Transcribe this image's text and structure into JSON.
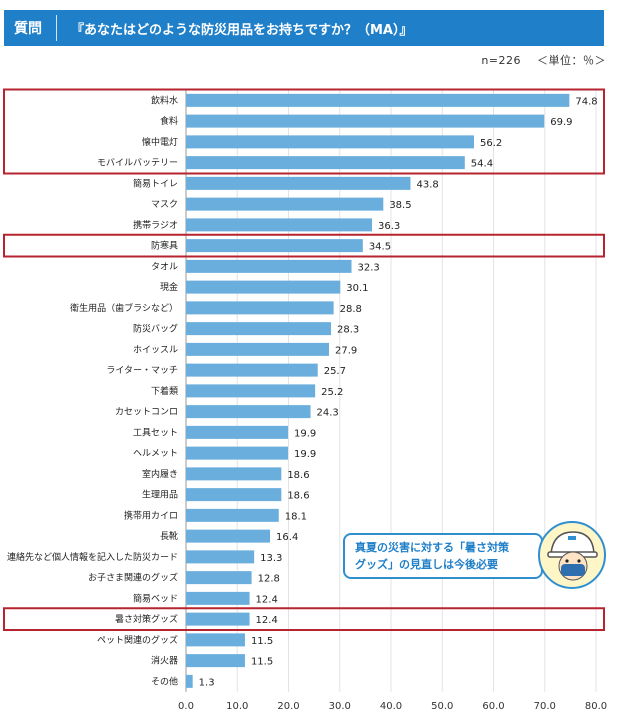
{
  "header": {
    "label": "質問",
    "question": "『あなたはどのような防災用品をお持ちですか？（MA）』"
  },
  "meta": {
    "n": "n=226",
    "unit": "＜単位：％＞"
  },
  "callout": {
    "line1": "真夏の災害に対する「暑さ対策",
    "line2": "グッズ」の見直しは今後必要"
  },
  "colors": {
    "bar": "#6aaedd",
    "highlight_border": "#b5242f",
    "header": "#1f7fc8",
    "grid": "#e3e3e3"
  },
  "icons": {
    "mascot": "helmet-mascot-icon"
  },
  "chart_data": {
    "type": "bar",
    "orientation": "horizontal",
    "categories": [
      "飲料水",
      "食料",
      "懐中電灯",
      "モバイルバッテリー",
      "簡易トイレ",
      "マスク",
      "携帯ラジオ",
      "防寒具",
      "タオル",
      "現金",
      "衛生用品（歯ブラシなど）",
      "防災バッグ",
      "ホイッスル",
      "ライター・マッチ",
      "下着類",
      "カセットコンロ",
      "工具セット",
      "ヘルメット",
      "室内履き",
      "生理用品",
      "携帯用カイロ",
      "長靴",
      "連絡先など個人情報を記入した防災カード",
      "お子さま関連のグッズ",
      "簡易ベッド",
      "暑さ対策グッズ",
      "ペット関連のグッズ",
      "消火器",
      "その他"
    ],
    "values": [
      74.8,
      69.9,
      56.2,
      54.4,
      43.8,
      38.5,
      36.3,
      34.5,
      32.3,
      30.1,
      28.8,
      28.3,
      27.9,
      25.7,
      25.2,
      24.3,
      19.9,
      19.9,
      18.6,
      18.6,
      18.1,
      16.4,
      13.3,
      12.8,
      12.4,
      12.4,
      11.5,
      11.5,
      1.3
    ],
    "value_labels": [
      "74.8",
      "69.9",
      "56.2",
      "54.4",
      "43.8",
      "38.5",
      "36.3",
      "34.5",
      "32.3",
      "30.1",
      "28.8",
      "28.3",
      "27.9",
      "25.7",
      "25.2",
      "24.3",
      "19.9",
      "19.9",
      "18.6",
      "18.6",
      "18.1",
      "16.4",
      "13.3",
      "12.8",
      "12.4",
      "12.4",
      "11.5",
      "11.5",
      "1.3"
    ],
    "x_ticks": [
      "0.0",
      "10.0",
      "20.0",
      "30.0",
      "40.0",
      "50.0",
      "60.0",
      "70.0",
      "80.0"
    ],
    "xlim": [
      0,
      80
    ],
    "grid": true,
    "highlight_groups": [
      [
        0,
        3
      ],
      [
        7,
        7
      ],
      [
        25,
        25
      ]
    ]
  }
}
